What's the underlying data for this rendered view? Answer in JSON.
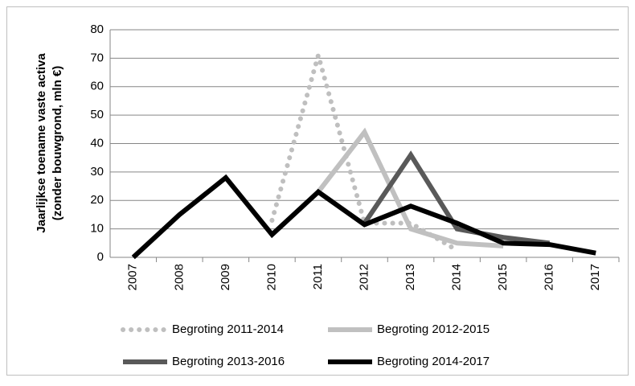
{
  "chart_data": {
    "type": "line",
    "ylabel": [
      "Jaarlijkse  toename vaste activa",
      "(zonder bouwgrond, mln €)"
    ],
    "categories": [
      "2007",
      "2008",
      "2009",
      "2010",
      "2011",
      "2012",
      "2013",
      "2014",
      "2015",
      "2016",
      "2017"
    ],
    "series": [
      {
        "name": "Begroting 2011-2014",
        "color": "#bfbfbf",
        "dash": "dotted",
        "values": [
          null,
          null,
          null,
          13,
          71,
          12,
          12,
          2.5,
          null,
          null,
          null
        ]
      },
      {
        "name": "Begroting 2012-2015",
        "color": "#c0c0c0",
        "dash": "solid",
        "values": [
          null,
          null,
          null,
          null,
          23,
          44,
          10,
          5,
          4,
          null,
          null
        ]
      },
      {
        "name": "Begroting 2013-2016",
        "color": "#595959",
        "dash": "solid",
        "values": [
          null,
          null,
          null,
          null,
          null,
          12,
          36,
          10,
          7,
          5,
          null
        ]
      },
      {
        "name": "Begroting 2014-2017",
        "color": "#000000",
        "dash": "solid",
        "values": [
          0,
          15,
          28,
          8,
          23,
          11.5,
          18,
          12,
          5,
          4.5,
          1.5
        ]
      }
    ],
    "ylim": [
      0,
      80
    ],
    "yticks": [
      0,
      10,
      20,
      30,
      40,
      50,
      60,
      70,
      80
    ],
    "grid": true
  }
}
